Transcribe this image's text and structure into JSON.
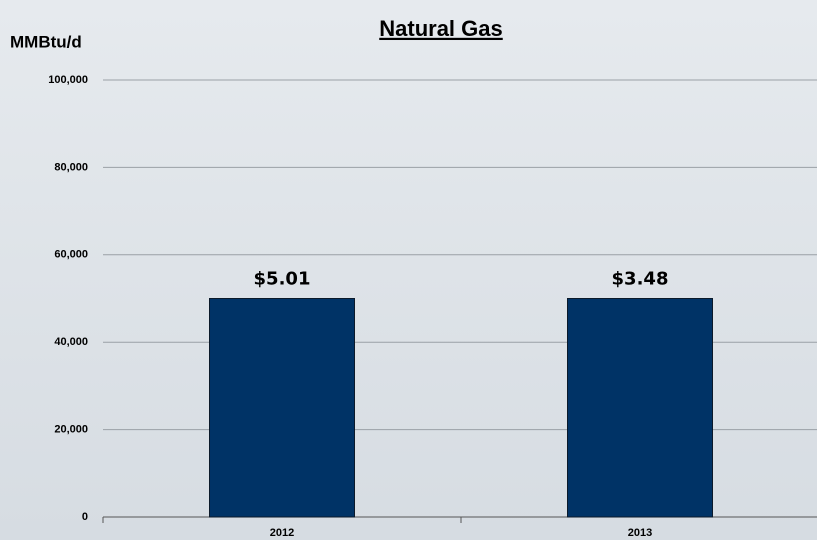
{
  "chart_data": {
    "type": "bar",
    "title": "Natural Gas",
    "y_label": "MMBtu/d",
    "categories": [
      "2012",
      "2013"
    ],
    "values": [
      50000,
      50000
    ],
    "color": "#003366",
    "annotations": [
      "$5.01",
      "$3.48"
    ],
    "ylim": [
      0,
      100000
    ],
    "yticks": [
      0,
      {
        "value": 20000,
        "label": "20,000"
      },
      {
        "value": 40000,
        "label": "40,000"
      },
      {
        "value": 60000,
        "label": "60,000"
      },
      {
        "value": 80000,
        "label": "80,000"
      },
      {
        "value": 100000,
        "label": "100,000"
      }
    ],
    "grid": true
  }
}
